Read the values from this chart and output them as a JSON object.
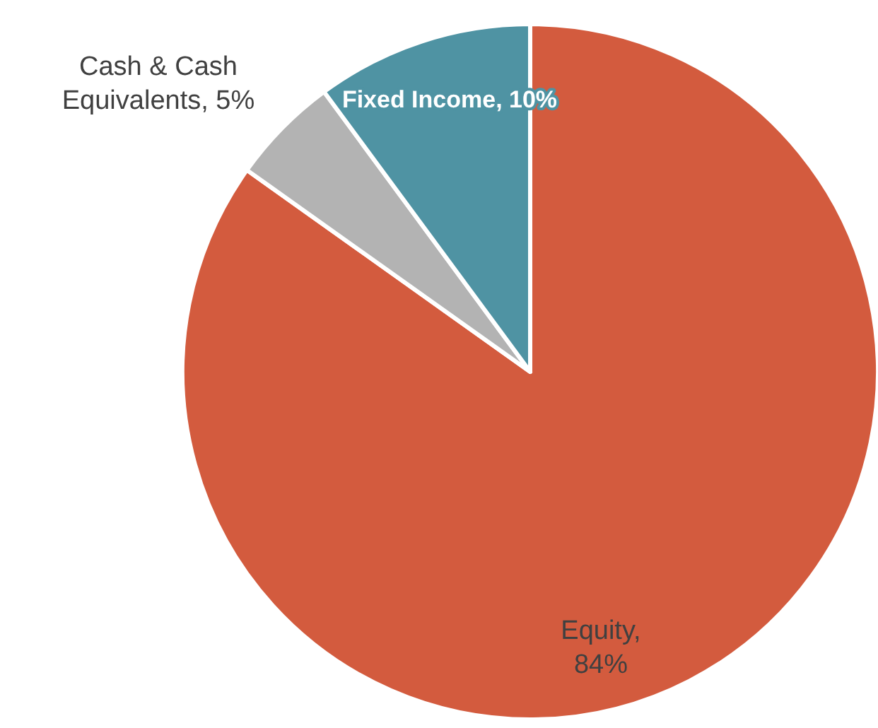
{
  "chart_data": {
    "type": "pie",
    "categories": [
      "Equity",
      "Cash & Cash Equivalents",
      "Fixed Income"
    ],
    "values": [
      84,
      5,
      10
    ],
    "value_labels": [
      ", 84%",
      ", 5%",
      ", 10%"
    ],
    "colors": [
      "#d35b3e",
      "#b3b3b3",
      "#4f93a3"
    ]
  }
}
